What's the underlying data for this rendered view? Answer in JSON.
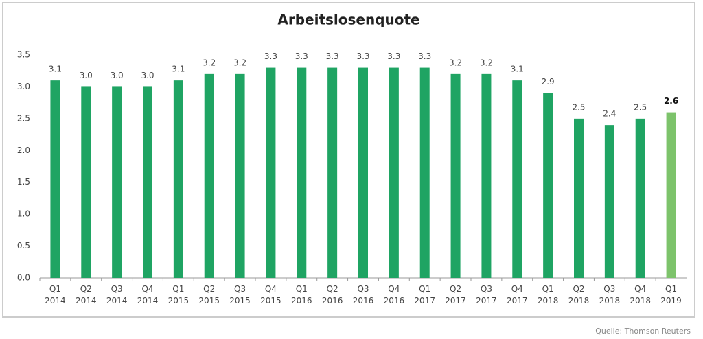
{
  "chart_data": {
    "type": "bar",
    "title": "Arbeitslosenquote",
    "categories": [
      "Q1 2014",
      "Q2 2014",
      "Q3 2014",
      "Q4 2014",
      "Q1 2015",
      "Q2 2015",
      "Q3 2015",
      "Q4 2015",
      "Q1 2016",
      "Q2 2016",
      "Q3 2016",
      "Q4 2016",
      "Q1 2017",
      "Q2 2017",
      "Q3 2017",
      "Q4 2017",
      "Q1 2018",
      "Q2 2018",
      "Q3 2018",
      "Q4 2018",
      "Q1 2019"
    ],
    "values": [
      3.1,
      3.0,
      3.0,
      3.0,
      3.1,
      3.2,
      3.2,
      3.3,
      3.3,
      3.3,
      3.3,
      3.3,
      3.3,
      3.2,
      3.2,
      3.1,
      2.9,
      2.5,
      2.4,
      2.5,
      2.6
    ],
    "value_labels": [
      "3.1",
      "3.0",
      "3.0",
      "3.0",
      "3.1",
      "3.2",
      "3.2",
      "3.3",
      "3.3",
      "3.3",
      "3.3",
      "3.3",
      "3.3",
      "3.2",
      "3.2",
      "3.1",
      "2.9",
      "2.5",
      "2.4",
      "2.5",
      "2.6"
    ],
    "color": "#1fa463",
    "colors": [
      "#1fa463",
      "#1fa463",
      "#1fa463",
      "#1fa463",
      "#1fa463",
      "#1fa463",
      "#1fa463",
      "#1fa463",
      "#1fa463",
      "#1fa463",
      "#1fa463",
      "#1fa463",
      "#1fa463",
      "#1fa463",
      "#1fa463",
      "#1fa463",
      "#1fa463",
      "#1fa463",
      "#1fa463",
      "#1fa463",
      "#7dc36b"
    ],
    "ylim": [
      0,
      3.5
    ],
    "yticks": [
      {
        "value": 0,
        "label": "0.0"
      },
      0.5,
      {
        "value": 1,
        "label": "1.0"
      },
      1.5,
      {
        "value": 2,
        "label": "2.0"
      },
      2.5,
      {
        "value": 3,
        "label": "3.0"
      },
      3.5
    ],
    "grid": false,
    "source": "Quelle: Thomson Reuters"
  }
}
